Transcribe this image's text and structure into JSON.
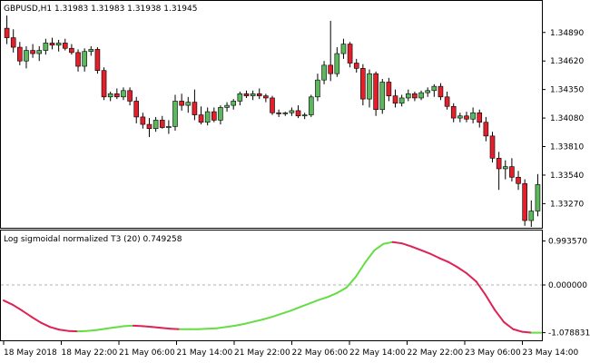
{
  "symbol_header": "GBPUSD,H1  1.31983 1.31983 1.31938 1.31945",
  "indicator_header": "Log sigmoidal normalized T3 (20) 0.749258",
  "colors": {
    "bull": "#5cb85c",
    "bear": "#e0202a",
    "wick": "#000000",
    "indicator_up": "#66dd44",
    "indicator_down": "#dd2255",
    "zero_line": "#b0b0b0",
    "frame": "#000000"
  },
  "chart_data": [
    {
      "type": "candlestick",
      "title": "GBPUSD,H1",
      "ylim": [
        1.3305,
        1.3518
      ],
      "y_ticks": [
        "1.34890",
        "1.34620",
        "1.34350",
        "1.34080",
        "1.33810",
        "1.33540",
        "1.33270"
      ],
      "candles": [
        [
          1.3493,
          1.3505,
          1.3478,
          1.3484
        ],
        [
          1.3484,
          1.3492,
          1.347,
          1.3475
        ],
        [
          1.3475,
          1.348,
          1.3458,
          1.3462
        ],
        [
          1.3462,
          1.3476,
          1.3455,
          1.3472
        ],
        [
          1.3472,
          1.3478,
          1.3465,
          1.3469
        ],
        [
          1.3469,
          1.3476,
          1.3462,
          1.3472
        ],
        [
          1.3472,
          1.3483,
          1.3468,
          1.3479
        ],
        [
          1.3479,
          1.3484,
          1.3473,
          1.3477
        ],
        [
          1.3477,
          1.3482,
          1.3471,
          1.3479
        ],
        [
          1.3479,
          1.3483,
          1.3472,
          1.3474
        ],
        [
          1.3474,
          1.3478,
          1.3468,
          1.347
        ],
        [
          1.347,
          1.3473,
          1.3452,
          1.3457
        ],
        [
          1.3457,
          1.3474,
          1.3452,
          1.3471
        ],
        [
          1.3471,
          1.3476,
          1.3467,
          1.3473
        ],
        [
          1.3473,
          1.3475,
          1.345,
          1.3453
        ],
        [
          1.3453,
          1.3456,
          1.3425,
          1.3428
        ],
        [
          1.3428,
          1.3433,
          1.3424,
          1.3431
        ],
        [
          1.3431,
          1.3436,
          1.3426,
          1.3428
        ],
        [
          1.3428,
          1.3437,
          1.3425,
          1.3434
        ],
        [
          1.3434,
          1.3437,
          1.342,
          1.3424
        ],
        [
          1.3424,
          1.3428,
          1.3403,
          1.3409
        ],
        [
          1.3409,
          1.3413,
          1.3398,
          1.3402
        ],
        [
          1.3402,
          1.3408,
          1.339,
          1.3398
        ],
        [
          1.3398,
          1.3409,
          1.3395,
          1.3406
        ],
        [
          1.3406,
          1.341,
          1.3398,
          1.3399
        ],
        [
          1.3399,
          1.3406,
          1.3393,
          1.34
        ],
        [
          1.34,
          1.343,
          1.3396,
          1.3424
        ],
        [
          1.3424,
          1.3431,
          1.3415,
          1.342
        ],
        [
          1.342,
          1.3428,
          1.3413,
          1.3423
        ],
        [
          1.3423,
          1.3435,
          1.3406,
          1.3411
        ],
        [
          1.3411,
          1.3419,
          1.3402,
          1.3404
        ],
        [
          1.3404,
          1.3418,
          1.3401,
          1.3414
        ],
        [
          1.3414,
          1.3418,
          1.3404,
          1.3406
        ],
        [
          1.3406,
          1.342,
          1.3402,
          1.3418
        ],
        [
          1.3418,
          1.3423,
          1.3414,
          1.342
        ],
        [
          1.342,
          1.3426,
          1.3416,
          1.3424
        ],
        [
          1.3424,
          1.3433,
          1.342,
          1.3431
        ],
        [
          1.3431,
          1.3434,
          1.3427,
          1.3429
        ],
        [
          1.3429,
          1.3434,
          1.3425,
          1.3431
        ],
        [
          1.3431,
          1.3436,
          1.3426,
          1.3429
        ],
        [
          1.3429,
          1.3431,
          1.3423,
          1.3427
        ],
        [
          1.3427,
          1.3429,
          1.3411,
          1.3413
        ],
        [
          1.3413,
          1.3416,
          1.3409,
          1.3412
        ],
        [
          1.3412,
          1.3414,
          1.341,
          1.3413
        ],
        [
          1.3413,
          1.3418,
          1.341,
          1.3415
        ],
        [
          1.3415,
          1.342,
          1.3408,
          1.341
        ],
        [
          1.341,
          1.3413,
          1.3407,
          1.3411
        ],
        [
          1.3411,
          1.343,
          1.3409,
          1.3428
        ],
        [
          1.3428,
          1.345,
          1.3424,
          1.3444
        ],
        [
          1.3444,
          1.3462,
          1.344,
          1.3458
        ],
        [
          1.3458,
          1.35,
          1.3443,
          1.345
        ],
        [
          1.345,
          1.3475,
          1.3447,
          1.3469
        ],
        [
          1.3469,
          1.3483,
          1.3464,
          1.3478
        ],
        [
          1.3478,
          1.348,
          1.3456,
          1.346
        ],
        [
          1.346,
          1.3464,
          1.3451,
          1.3455
        ],
        [
          1.3455,
          1.3459,
          1.342,
          1.3426
        ],
        [
          1.3426,
          1.3454,
          1.3418,
          1.345
        ],
        [
          1.345,
          1.3452,
          1.341,
          1.3416
        ],
        [
          1.3416,
          1.3445,
          1.3412,
          1.3442
        ],
        [
          1.3442,
          1.3446,
          1.3424,
          1.3429
        ],
        [
          1.3429,
          1.3435,
          1.3418,
          1.3422
        ],
        [
          1.3422,
          1.343,
          1.3419,
          1.3427
        ],
        [
          1.3427,
          1.3435,
          1.3424,
          1.3431
        ],
        [
          1.3431,
          1.3433,
          1.3424,
          1.3427
        ],
        [
          1.3427,
          1.3434,
          1.3425,
          1.3432
        ],
        [
          1.3432,
          1.3437,
          1.3428,
          1.3434
        ],
        [
          1.3434,
          1.344,
          1.3428,
          1.3438
        ],
        [
          1.3438,
          1.3441,
          1.3425,
          1.3428
        ],
        [
          1.3428,
          1.3433,
          1.3416,
          1.3419
        ],
        [
          1.3419,
          1.3422,
          1.3404,
          1.3408
        ],
        [
          1.3408,
          1.3413,
          1.3404,
          1.341
        ],
        [
          1.341,
          1.3414,
          1.3404,
          1.3407
        ],
        [
          1.3407,
          1.3418,
          1.3403,
          1.3413
        ],
        [
          1.3413,
          1.3416,
          1.3399,
          1.3404
        ],
        [
          1.3404,
          1.3409,
          1.3386,
          1.3391
        ],
        [
          1.3391,
          1.3395,
          1.3366,
          1.337
        ],
        [
          1.337,
          1.3376,
          1.334,
          1.336
        ],
        [
          1.336,
          1.3368,
          1.335,
          1.3362
        ],
        [
          1.3362,
          1.337,
          1.3348,
          1.3352
        ],
        [
          1.3352,
          1.3358,
          1.334,
          1.3346
        ],
        [
          1.3346,
          1.335,
          1.3306,
          1.3311
        ],
        [
          1.3311,
          1.333,
          1.3305,
          1.332
        ],
        [
          1.332,
          1.3355,
          1.3315,
          1.3345
        ]
      ]
    },
    {
      "type": "line",
      "title": "Log sigmoidal normalized T3 (20)",
      "ylim": [
        -1.19,
        1.19
      ],
      "y_ticks": [
        "0.993570",
        "0.000000",
        "-1.078831"
      ],
      "values": [
        -0.35,
        -0.45,
        -0.58,
        -0.72,
        -0.85,
        -0.95,
        -1.01,
        -1.04,
        -1.05,
        -1.04,
        -1.02,
        -0.99,
        -0.96,
        -0.93,
        -0.92,
        -0.93,
        -0.95,
        -0.97,
        -0.99,
        -1.0,
        -1.0,
        -1.0,
        -0.99,
        -0.98,
        -0.95,
        -0.92,
        -0.88,
        -0.83,
        -0.78,
        -0.72,
        -0.65,
        -0.58,
        -0.5,
        -0.42,
        -0.34,
        -0.27,
        -0.18,
        -0.06,
        0.18,
        0.5,
        0.78,
        0.93,
        0.97,
        0.94,
        0.87,
        0.79,
        0.71,
        0.61,
        0.52,
        0.4,
        0.26,
        0.08,
        -0.22,
        -0.56,
        -0.84,
        -1.0,
        -1.06,
        -1.08,
        -1.08
      ]
    }
  ],
  "x_axis_labels": [
    "18 May 2018",
    "18 May 22:00",
    "21 May 06:00",
    "21 May 14:00",
    "21 May 22:00",
    "22 May 06:00",
    "22 May 14:00",
    "22 May 22:00",
    "23 May 06:00",
    "23 May 14:00"
  ]
}
